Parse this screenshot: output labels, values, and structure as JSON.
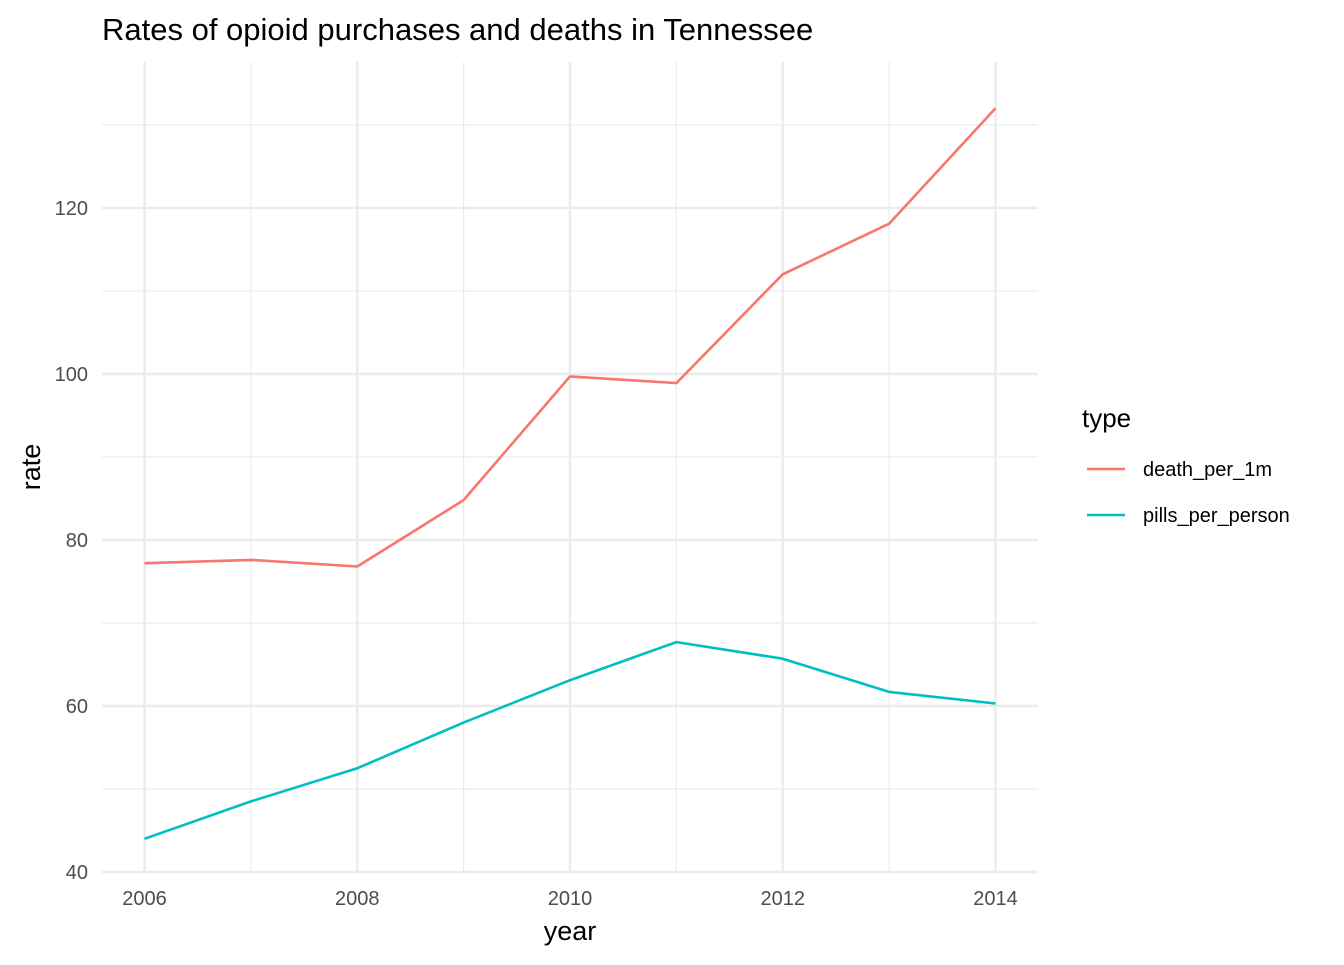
{
  "chart_data": {
    "type": "line",
    "title": "Rates of opioid purchases and deaths in Tennessee",
    "xlabel": "year",
    "ylabel": "rate",
    "x": [
      2006,
      2007,
      2008,
      2009,
      2010,
      2011,
      2012,
      2013,
      2014
    ],
    "xlim": [
      2006,
      2014
    ],
    "ylim": [
      40,
      133
    ],
    "x_ticks": [
      2006,
      2008,
      2010,
      2012,
      2014
    ],
    "y_ticks": [
      40,
      60,
      80,
      100,
      120
    ],
    "x_tick_labels": [
      "2006",
      "2008",
      "2010",
      "2012",
      "2014"
    ],
    "y_tick_labels": [
      "40",
      "60",
      "80",
      "100",
      "120"
    ],
    "grid": true,
    "legend": {
      "title": "type",
      "position": "right"
    },
    "series": [
      {
        "name": "death_per_1m",
        "color": "#F8766D",
        "values": [
          77.2,
          77.6,
          76.8,
          84.8,
          99.7,
          98.9,
          112.0,
          118.1,
          132.0
        ]
      },
      {
        "name": "pills_per_person",
        "color": "#00BFC4",
        "values": [
          44.0,
          48.5,
          52.5,
          58.0,
          63.1,
          67.7,
          65.7,
          61.7,
          60.3
        ]
      }
    ]
  }
}
